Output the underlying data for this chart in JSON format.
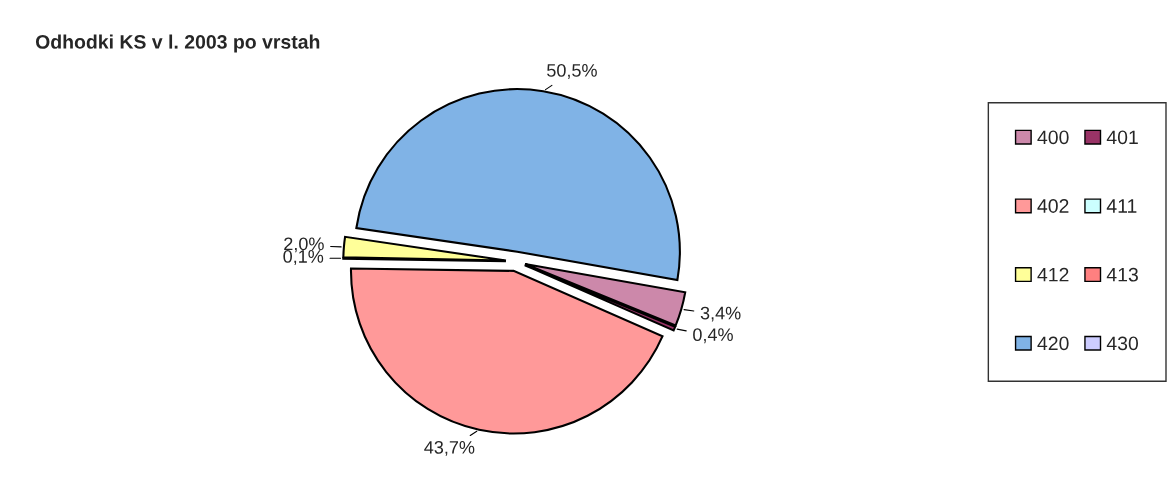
{
  "chart_data": {
    "type": "pie",
    "title": "Odhodki KS v l. 2003 po vrstah",
    "categories": [
      "400",
      "401",
      "402",
      "411",
      "412",
      "413",
      "420",
      "430"
    ],
    "values": [
      3.4,
      0.4,
      43.7,
      0.1,
      2.0,
      0,
      50.5,
      0
    ],
    "value_labels": [
      "3,4%",
      "0,4%",
      "43,7%",
      "0,1%",
      "2,0%",
      null,
      "50,5%",
      null
    ],
    "colors": [
      "#cc88aa",
      "#993366",
      "#ff9999",
      "#ccffff",
      "#ffff99",
      "#ff8080",
      "#80b3e6",
      "#ccccff"
    ],
    "legend": "right"
  }
}
